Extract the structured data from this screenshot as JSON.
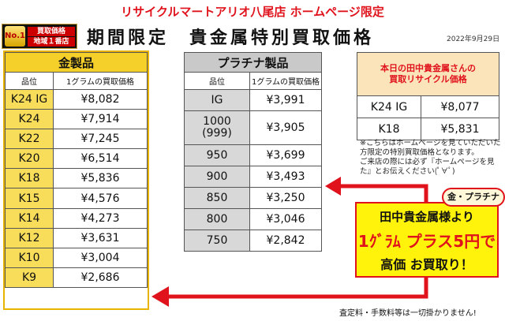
{
  "header": {
    "line": "リサイクルマートアリオ八尾店 ホームページ限定"
  },
  "badge": {
    "no1": "No.1",
    "line1": "買取価格",
    "line2": "地域１番店"
  },
  "title": "期間限定　貴金属特別買取価格",
  "date": "2022年9月29日",
  "gold": {
    "caption": "金製品",
    "col_grade": "品位",
    "col_price": "1グラムの買取価格",
    "rows": [
      {
        "grade": "K24 IG",
        "price": "¥8,082"
      },
      {
        "grade": "K24",
        "price": "¥7,914"
      },
      {
        "grade": "K22",
        "price": "¥7,245"
      },
      {
        "grade": "K20",
        "price": "¥6,514"
      },
      {
        "grade": "K18",
        "price": "¥5,836"
      },
      {
        "grade": "K15",
        "price": "¥4,576"
      },
      {
        "grade": "K14",
        "price": "¥4,273"
      },
      {
        "grade": "K12",
        "price": "¥3,631"
      },
      {
        "grade": "K10",
        "price": "¥3,004"
      },
      {
        "grade": "K9",
        "price": "¥2,686"
      }
    ]
  },
  "platinum": {
    "caption": "プラチナ製品",
    "col_grade": "品位",
    "col_price": "1グラムの買取価格",
    "rows": [
      {
        "grade": "IG",
        "price": "¥3,991"
      },
      {
        "grade": "1000\n(999)",
        "price": "¥3,905"
      },
      {
        "grade": "950",
        "price": "¥3,699"
      },
      {
        "grade": "900",
        "price": "¥3,493"
      },
      {
        "grade": "850",
        "price": "¥3,250"
      },
      {
        "grade": "800",
        "price": "¥3,046"
      },
      {
        "grade": "750",
        "price": "¥2,842"
      }
    ]
  },
  "today": {
    "caption_line1": "本日の田中貴金属さんの",
    "caption_line2": "買取リサイクル価格",
    "rows": [
      {
        "grade": "K24 IG",
        "price": "¥8,077"
      },
      {
        "grade": "K18",
        "price": "¥5,831"
      }
    ]
  },
  "note": {
    "line1": "※こちらはホームページを見ていただいた方限定の特別買取価格となります。",
    "line2": "ご来店の際には必ず『ホームページを見た』とお伝えください(ﾟ∀ﾟ)"
  },
  "promo": {
    "pill": "金・プラチナ",
    "line1": "田中貴金属様より",
    "line2": "1ｸﾞﾗﾑ プラス5円で",
    "line3": "高価 お買取り！"
  },
  "footer": "査定料・手数料等は一切掛かりません!",
  "colors": {
    "red": "#e0121b",
    "gold": "#f7dd5a",
    "platinum": "#d8d8d8",
    "promo_bg": "#fff30b"
  }
}
